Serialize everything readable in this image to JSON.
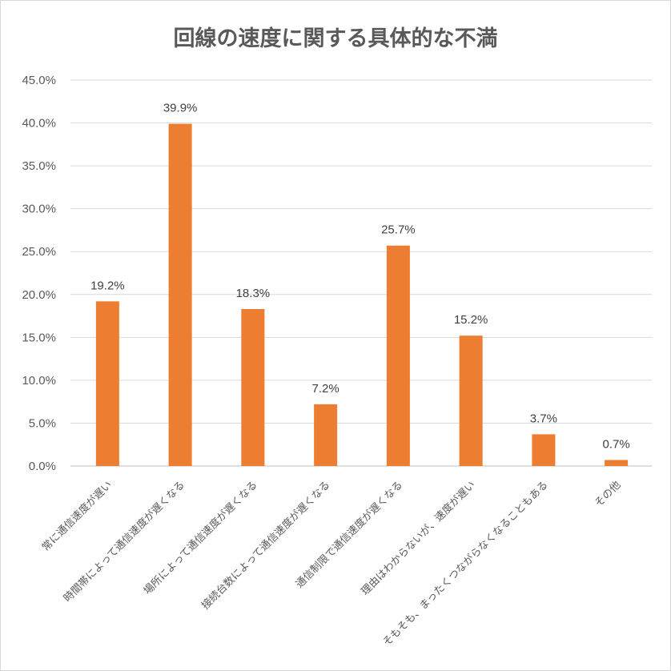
{
  "chart_data": {
    "type": "bar",
    "title": "回線の速度に関する具体的な不満",
    "categories": [
      "常に通信速度が遅い",
      "時間帯によって通信速度が遅くなる",
      "場所によって通信速度が遅くなる",
      "接続台数によって通信速度が遅くなる",
      "通信制限で通信速度が遅くなる",
      "理由はわからないが、速度が遅い",
      "そもそも、まったくつながらなくなることもある",
      "その他"
    ],
    "values": [
      19.2,
      39.9,
      18.3,
      7.2,
      25.7,
      15.2,
      3.7,
      0.7
    ],
    "data_labels": [
      "19.2%",
      "39.9%",
      "18.3%",
      "7.2%",
      "25.7%",
      "15.2%",
      "3.7%",
      "0.7%"
    ],
    "y_ticks": [
      "0.0%",
      "5.0%",
      "10.0%",
      "15.0%",
      "20.0%",
      "25.0%",
      "30.0%",
      "35.0%",
      "40.0%",
      "45.0%"
    ],
    "ylim": [
      0,
      45
    ],
    "grid": true,
    "bar_color": "#ed7d31",
    "grid_color": "#d9d9d9"
  }
}
